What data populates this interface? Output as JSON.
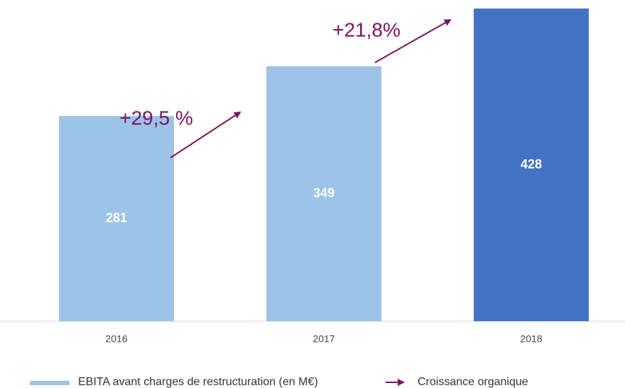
{
  "chart_data": {
    "type": "bar",
    "categories": [
      "2016",
      "2017",
      "2018"
    ],
    "series": [
      {
        "name": "EBITA avant charges de restructuration (en M€)",
        "colors": [
          "#9dc3e6",
          "#9dc3e6",
          "#4472c4"
        ],
        "values": [
          281,
          349,
          428
        ]
      }
    ],
    "annotations": [
      {
        "text": "+29,5 %"
      },
      {
        "text": "+21,8%"
      }
    ],
    "annotation_legend": "Croissance organique",
    "annotation_color": "#7b1461"
  }
}
